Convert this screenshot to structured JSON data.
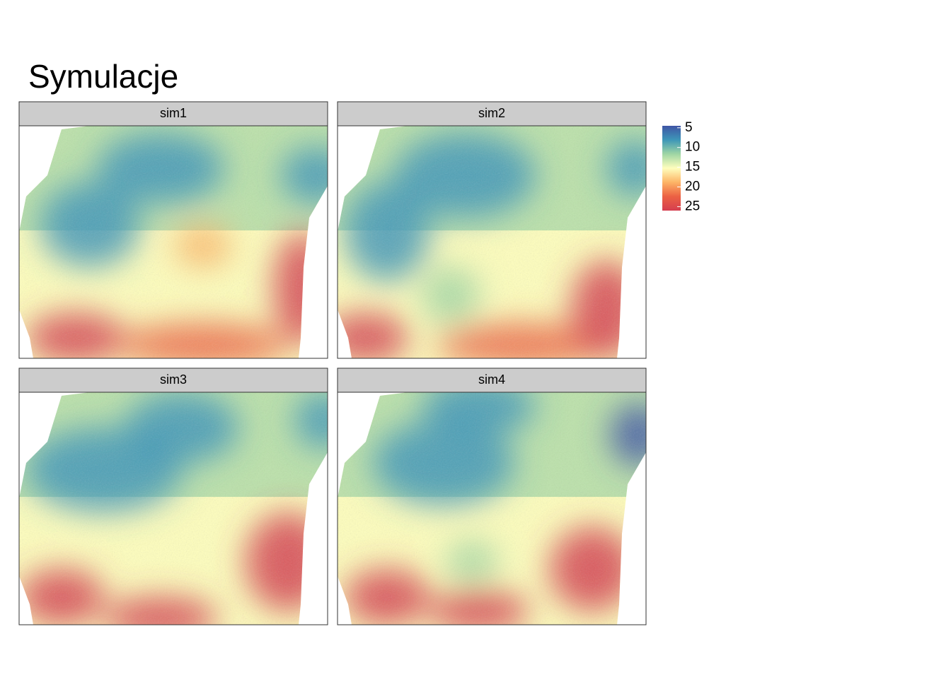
{
  "title": "Symulacje",
  "panels": [
    "sim1",
    "sim2",
    "sim3",
    "sim4"
  ],
  "legend": {
    "lim": [
      4.5,
      26
    ],
    "ticks": [
      5,
      10,
      15,
      20,
      25
    ],
    "colors": [
      "#3f55a5",
      "#3e97b8",
      "#9fd6a4",
      "#fefebd",
      "#fdb466",
      "#ec6143",
      "#d53e4f"
    ]
  }
}
